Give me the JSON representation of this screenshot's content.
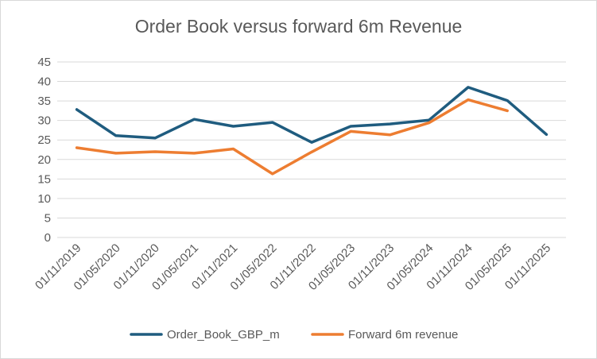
{
  "chart_data": {
    "type": "line",
    "title": "Order Book versus forward 6m Revenue",
    "xlabel": "",
    "ylabel": "",
    "ylim": [
      0,
      45
    ],
    "yticks": [
      0,
      5,
      10,
      15,
      20,
      25,
      30,
      35,
      40,
      45
    ],
    "categories": [
      "01/11/2019",
      "01/05/2020",
      "01/11/2020",
      "01/05/2021",
      "01/11/2021",
      "01/05/2022",
      "01/11/2022",
      "01/05/2023",
      "01/11/2023",
      "01/05/2024",
      "01/11/2024",
      "01/05/2025",
      "01/11/2025"
    ],
    "grid": "horizontal",
    "legend_position": "bottom",
    "series": [
      {
        "name": "Order_Book_GBP_m",
        "color": "#1f5c7f",
        "values": [
          32.8,
          26.1,
          25.5,
          30.3,
          28.5,
          29.5,
          24.4,
          28.5,
          29.1,
          30.1,
          38.5,
          35.1,
          26.4
        ]
      },
      {
        "name": "Forward 6m revenue",
        "color": "#ed7d31",
        "values": [
          23.0,
          21.6,
          22.0,
          21.6,
          22.7,
          16.3,
          21.9,
          27.2,
          26.3,
          29.4,
          35.3,
          32.5,
          null
        ]
      }
    ]
  }
}
